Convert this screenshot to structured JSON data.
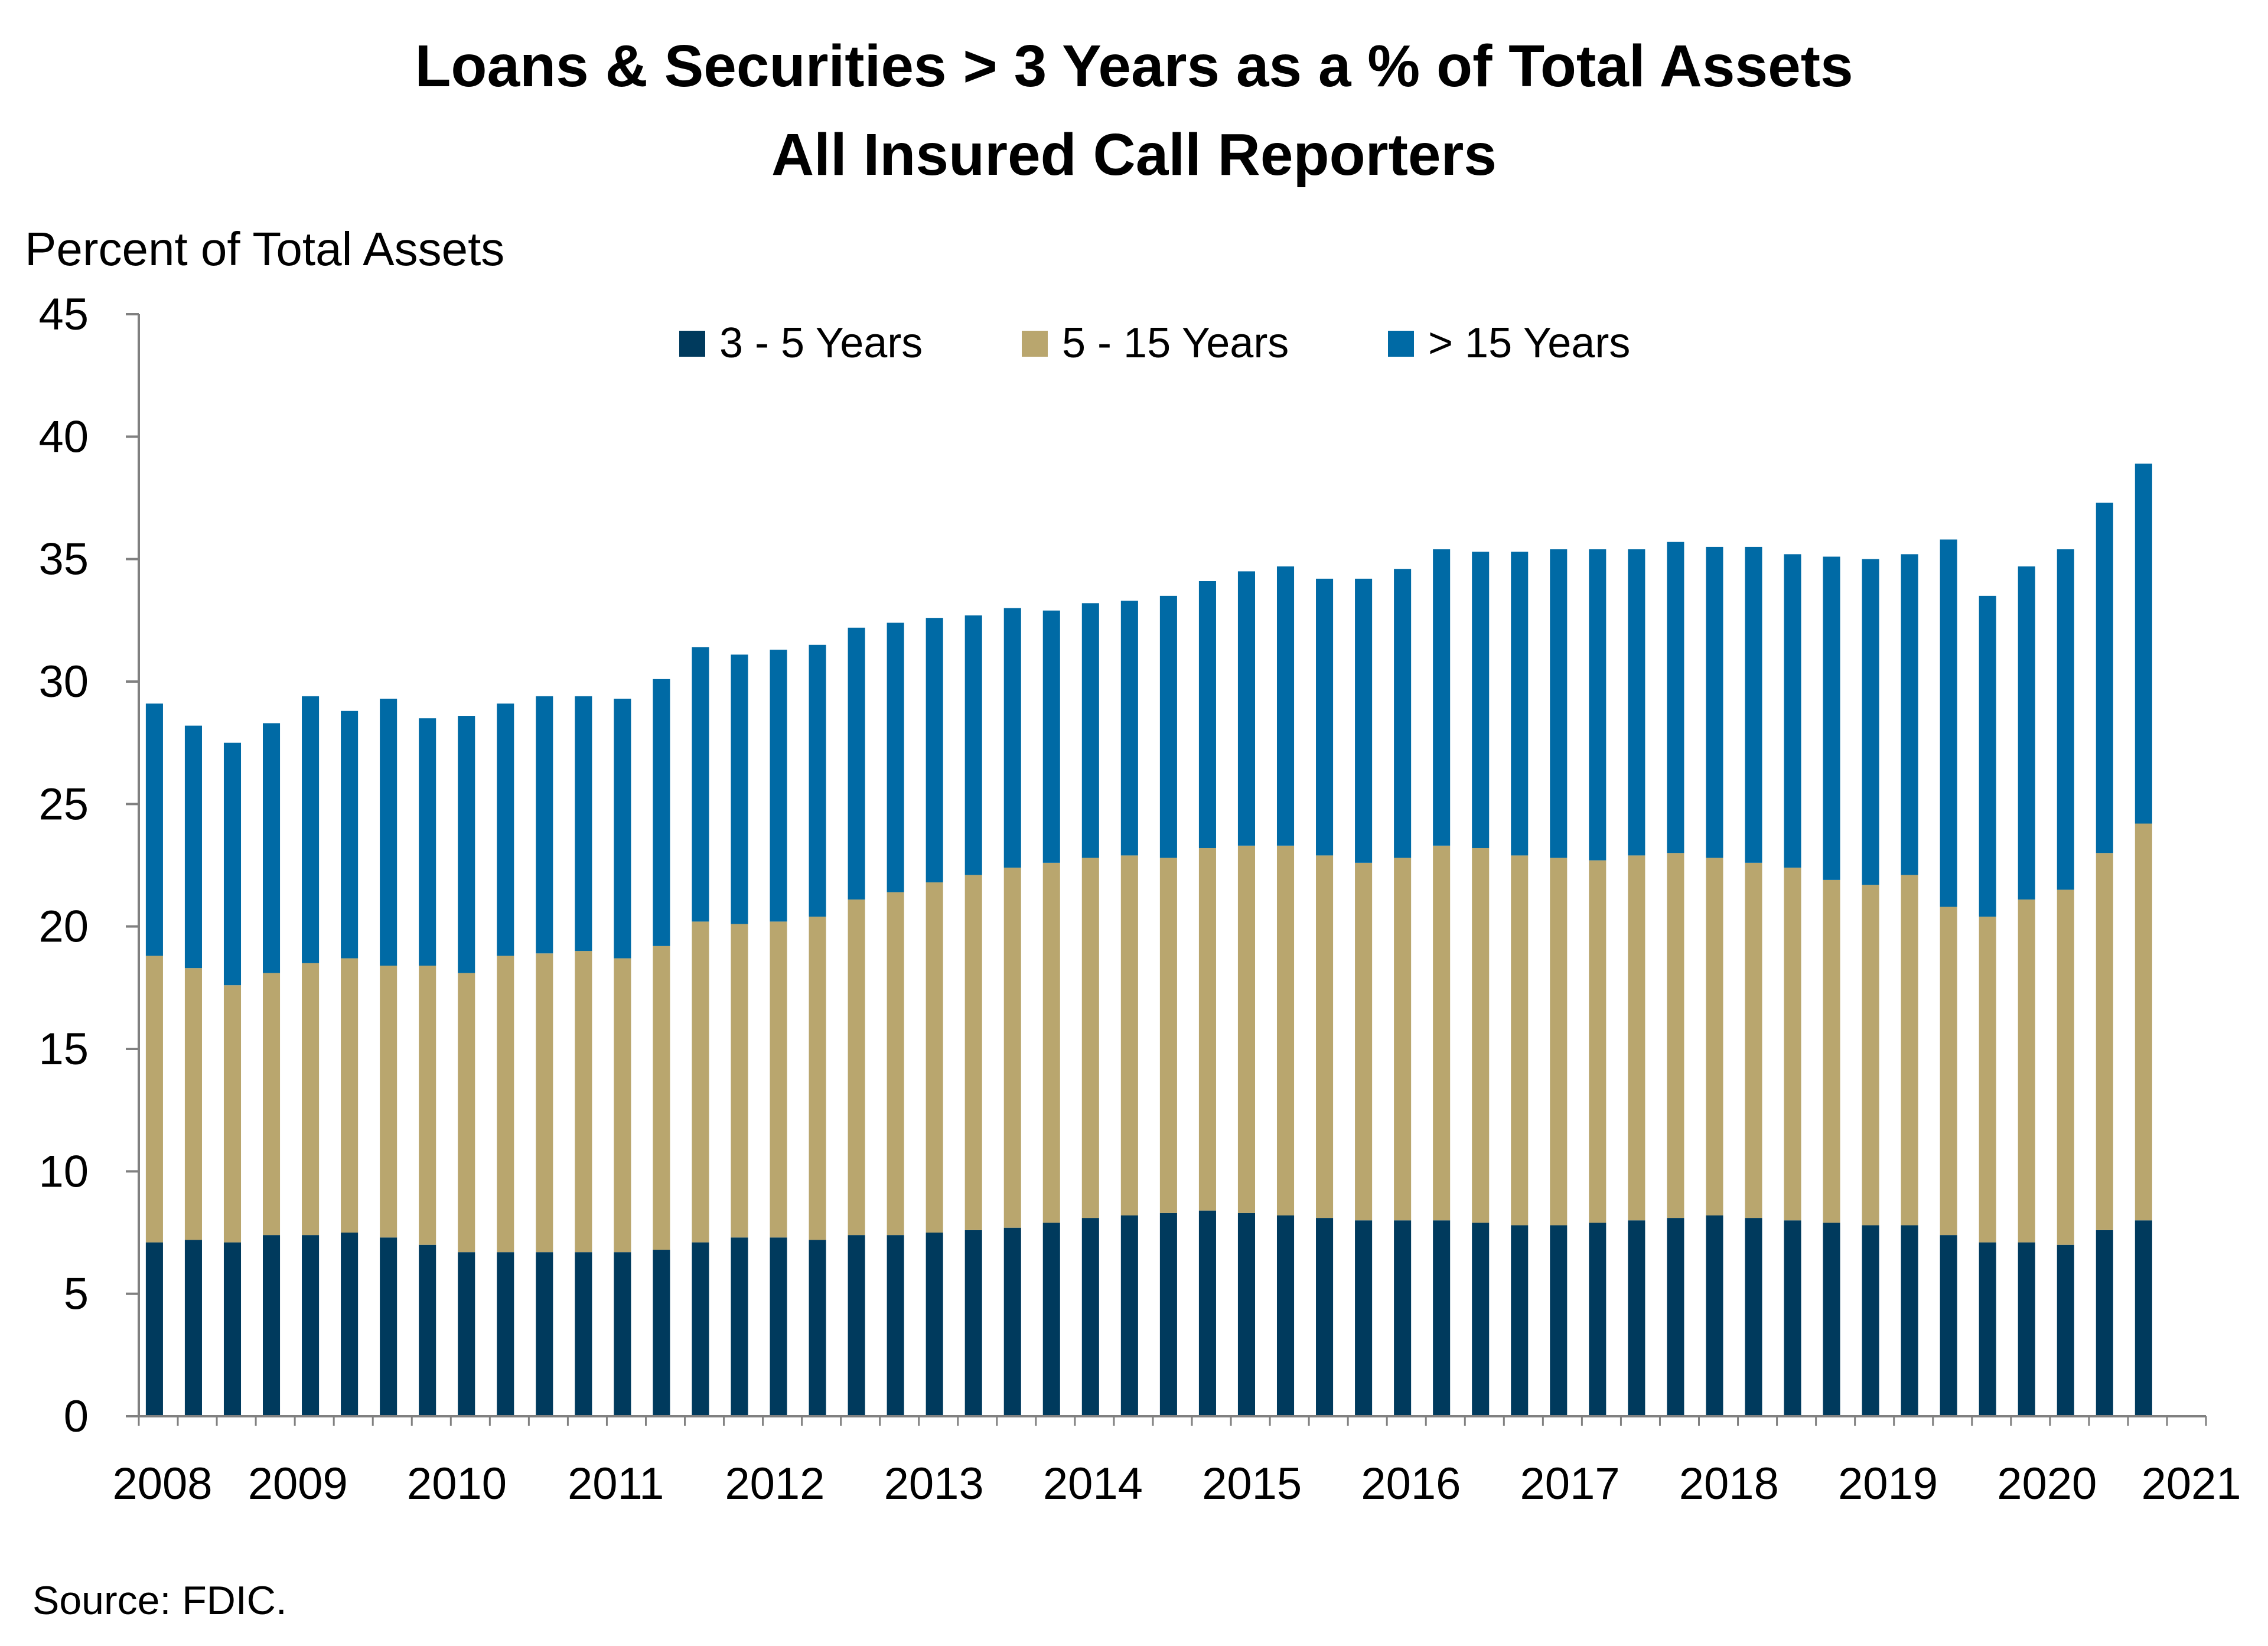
{
  "chart_data": {
    "type": "bar",
    "stacked": true,
    "title": "Loans & Securities > 3 Years as a % of Total Assets",
    "subtitle": "All Insured Call Reporters",
    "ylabel": "Percent of Total Assets",
    "xlabel": "",
    "ylim": [
      0,
      45
    ],
    "yticks": [
      "0",
      "5",
      "10",
      "15",
      "20",
      "25",
      "30",
      "35",
      "40",
      "45"
    ],
    "x_tick_labels": [
      "2008",
      "2009",
      "2010",
      "2011",
      "2012",
      "2013",
      "2014",
      "2015",
      "2016",
      "2017",
      "2018",
      "2019",
      "2020",
      "2021"
    ],
    "grid": false,
    "legend_position": "top-center",
    "source": "Source: FDIC.",
    "series": [
      {
        "name": "3 - 5 Years",
        "color": "#003a5d",
        "values": [
          7.1,
          7.2,
          7.1,
          7.4,
          7.4,
          7.5,
          7.3,
          7.0,
          6.7,
          6.7,
          6.7,
          6.7,
          6.7,
          6.8,
          7.1,
          7.3,
          7.3,
          7.2,
          7.4,
          7.4,
          7.5,
          7.6,
          7.7,
          7.9,
          8.1,
          8.2,
          8.3,
          8.4,
          8.3,
          8.2,
          8.1,
          8.0,
          8.0,
          8.0,
          7.9,
          7.8,
          7.8,
          7.9,
          8.0,
          8.1,
          8.2,
          8.1,
          8.0,
          7.9,
          7.8,
          7.8,
          7.4,
          7.1,
          7.1,
          7.0,
          7.6,
          8.0
        ]
      },
      {
        "name": "5 - 15 Years",
        "color": "#b9a66e",
        "values": [
          11.7,
          11.1,
          10.5,
          10.7,
          11.1,
          11.2,
          11.1,
          11.4,
          11.4,
          12.1,
          12.2,
          12.3,
          12.0,
          12.4,
          13.1,
          12.8,
          12.9,
          13.2,
          13.7,
          14.0,
          14.3,
          14.5,
          14.7,
          14.7,
          14.7,
          14.7,
          14.5,
          14.8,
          15.0,
          15.1,
          14.8,
          14.6,
          14.8,
          15.3,
          15.3,
          15.1,
          15.0,
          14.8,
          14.9,
          14.9,
          14.6,
          14.5,
          14.4,
          14.0,
          13.9,
          14.3,
          13.4,
          13.3,
          14.0,
          14.5,
          15.4,
          16.2
        ]
      },
      {
        "name": "> 15 Years",
        "color": "#006aa5",
        "values": [
          10.3,
          9.9,
          9.9,
          10.2,
          10.9,
          10.1,
          10.9,
          10.1,
          10.5,
          10.3,
          10.5,
          10.4,
          10.6,
          10.9,
          11.2,
          11.0,
          11.1,
          11.1,
          11.1,
          11.0,
          10.8,
          10.6,
          10.6,
          10.3,
          10.4,
          10.4,
          10.7,
          10.9,
          11.2,
          11.4,
          11.3,
          11.6,
          11.8,
          12.1,
          12.1,
          12.4,
          12.6,
          12.7,
          12.5,
          12.7,
          12.7,
          12.9,
          12.8,
          13.2,
          13.3,
          13.1,
          15.0,
          13.1,
          13.6,
          13.9,
          14.3,
          14.7
        ]
      }
    ]
  }
}
